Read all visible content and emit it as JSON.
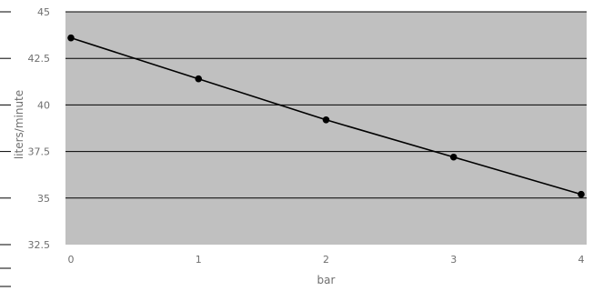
{
  "chart_data": {
    "type": "line",
    "x": [
      0,
      1,
      2,
      3,
      4
    ],
    "series": [
      {
        "values": [
          43.6,
          41.4,
          39.2,
          37.2,
          35.2
        ]
      }
    ],
    "xlabel": "bar",
    "ylabel": "liters/minute",
    "xlim": [
      0,
      4
    ],
    "ylim": [
      32.5,
      45
    ],
    "xticks": [
      "0",
      "1",
      "2",
      "3",
      "4"
    ],
    "yticks": [
      "32.5",
      "35",
      "37.5",
      "40",
      "42.5",
      "45"
    ],
    "grid": "horizontal",
    "colors": {
      "plot_bg": "#c0c0c0",
      "line": "#000000",
      "grid": "#000000"
    }
  }
}
